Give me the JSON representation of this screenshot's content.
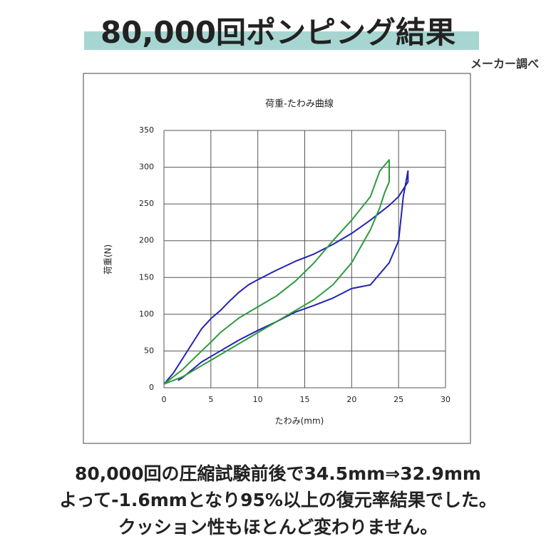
{
  "header": {
    "title": "80,000回ポンピング結果",
    "note": "メーカー調べ"
  },
  "chart_data": {
    "type": "line",
    "title": "荷重-たわみ曲線",
    "x_label": "たわみ(mm)",
    "y_label": "荷重(N)",
    "xlim": [
      0,
      30
    ],
    "xticks": [
      0,
      5,
      10,
      15,
      20,
      25,
      30
    ],
    "ylim": [
      0,
      350
    ],
    "yticks": [
      0,
      50,
      100,
      150,
      200,
      250,
      300,
      350
    ],
    "grid": true,
    "series": [
      {
        "color": "#2323b4",
        "x": [
          0,
          1,
          2,
          3,
          4,
          5,
          6,
          7,
          8,
          9,
          10,
          12,
          14,
          16,
          18,
          20,
          22,
          24,
          25,
          26,
          26,
          25.5,
          25,
          24,
          22,
          20,
          18,
          16,
          14,
          12,
          10,
          8,
          6,
          4,
          2,
          1.5
        ],
        "values": [
          5,
          20,
          40,
          60,
          80,
          94,
          105,
          118,
          130,
          140,
          147,
          160,
          172,
          182,
          195,
          210,
          228,
          248,
          260,
          280,
          295,
          260,
          200,
          170,
          140,
          135,
          122,
          112,
          103,
          90,
          78,
          65,
          50,
          35,
          14,
          10
        ]
      },
      {
        "color": "#2e9a3c",
        "x": [
          0,
          2,
          4,
          5,
          6,
          8,
          10,
          12,
          14,
          16,
          18,
          20,
          22,
          23,
          24,
          24,
          23.5,
          23,
          22,
          20,
          18,
          16,
          14,
          12,
          10,
          8,
          6,
          4,
          2,
          0
        ],
        "values": [
          5,
          25,
          50,
          62,
          75,
          95,
          110,
          125,
          145,
          170,
          200,
          228,
          260,
          295,
          310,
          280,
          265,
          245,
          215,
          170,
          140,
          120,
          105,
          90,
          75,
          60,
          45,
          30,
          15,
          5
        ]
      }
    ]
  },
  "footer": {
    "lines": [
      "80,000回の圧縮試験前後で34.5mm⇒32.9mm",
      "よって-1.6mmとなり95%以上の復元率結果でした。",
      "クッション性もほとんど変わりません。"
    ]
  }
}
